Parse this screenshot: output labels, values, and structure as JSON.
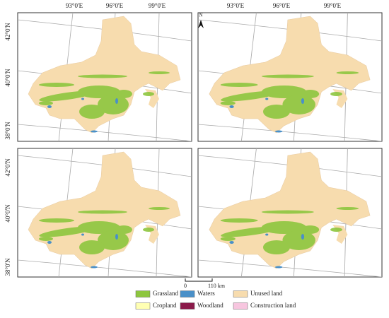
{
  "north_arrow": "N",
  "top_left": {
    "lon_labels": [
      "93°0'E",
      "96°0'E",
      "99°0'E"
    ],
    "lat_labels": [
      "42°0'N",
      "40°0'N",
      "38°0'N"
    ]
  },
  "top_right": {
    "lon_labels": [
      "93°0'E",
      "96°0'E",
      "99°0'E"
    ]
  },
  "bottom_left": {
    "lat_labels": [
      "42°0'N",
      "40°0'N",
      "38°0'N"
    ]
  },
  "scale_bar": {
    "start": "0",
    "end": "110 km"
  },
  "legend": [
    {
      "label": "Grassland",
      "color": "#8dc63f"
    },
    {
      "label": "Waters",
      "color": "#4a90c8"
    },
    {
      "label": "Unused land",
      "color": "#f7dcae"
    },
    {
      "label": "Cropland",
      "color": "#ffffb3"
    },
    {
      "label": "Woodland",
      "color": "#8b1a4a"
    },
    {
      "label": "Construction land",
      "color": "#f7c6df"
    }
  ]
}
